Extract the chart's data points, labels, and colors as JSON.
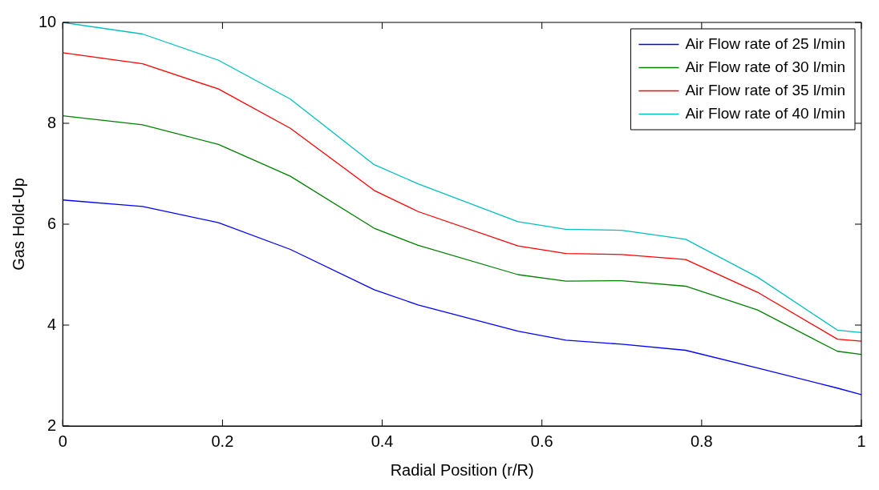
{
  "chart_data": {
    "type": "line",
    "xlabel": "Radial Position (r/R)",
    "ylabel": "Gas Hold-Up",
    "x": [
      0,
      0.1,
      0.195,
      0.285,
      0.39,
      0.445,
      0.57,
      0.63,
      0.7,
      0.78,
      0.87,
      0.97,
      1
    ],
    "series": [
      {
        "name": "Air Flow rate of 25 l/min",
        "color": "#0000ff",
        "values": [
          6.48,
          6.35,
          6.03,
          5.5,
          4.7,
          4.4,
          3.88,
          3.7,
          3.62,
          3.5,
          3.15,
          2.75,
          2.62
        ]
      },
      {
        "name": "Air Flow rate of 30 l/min",
        "color": "#008000",
        "values": [
          8.15,
          7.97,
          7.58,
          6.95,
          5.92,
          5.58,
          5.0,
          4.87,
          4.88,
          4.77,
          4.3,
          3.48,
          3.42
        ]
      },
      {
        "name": "Air Flow rate of 35 l/min",
        "color": "#ff0000",
        "values": [
          9.4,
          9.18,
          8.68,
          7.9,
          6.67,
          6.25,
          5.57,
          5.42,
          5.4,
          5.3,
          4.65,
          3.72,
          3.68
        ]
      },
      {
        "name": "Air Flow rate of 40 l/min",
        "color": "#00bfbf",
        "values": [
          10.0,
          9.77,
          9.25,
          8.48,
          7.18,
          6.8,
          6.05,
          5.9,
          5.88,
          5.7,
          4.95,
          3.9,
          3.85
        ]
      }
    ],
    "xlim": [
      0,
      1
    ],
    "xticks": [
      0,
      0.2,
      0.4,
      0.6,
      0.8,
      1
    ],
    "ylim": [
      2,
      10
    ],
    "yticks": [
      2,
      4,
      6,
      8,
      10
    ],
    "grid": false,
    "legend": "top right",
    "marker": "none",
    "line_style": "solid"
  }
}
